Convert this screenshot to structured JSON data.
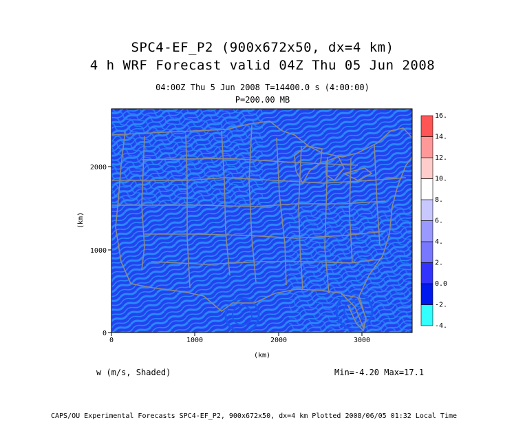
{
  "header": {
    "title_line1": "SPC4-EF_P2 (900x672x50, dx=4 km)",
    "title_line2": "4 h WRF Forecast valid 04Z Thu 05 Jun 2008",
    "subtitle_line1": "04:00Z Thu  5 Jun 2008    T=14400.0 s (4:00:00)",
    "subtitle_line2": "P=200.00 MB"
  },
  "map": {
    "field": "vertical velocity",
    "background_color": "#2244ee",
    "pattern_color": "#2a88ff",
    "boundary_color": "#8a8a8a",
    "x_axis": {
      "label": "(km)",
      "ticks": [
        "0",
        "1000",
        "2000",
        "3000"
      ],
      "range": [
        0,
        3600
      ]
    },
    "y_axis": {
      "label": "(km)",
      "ticks": [
        "0",
        "1000",
        "2000"
      ],
      "range": [
        0,
        2700
      ]
    }
  },
  "colorbar": {
    "labels": [
      "-4.",
      "-2.",
      "0.0",
      "2.",
      "4.",
      "6.",
      "8.",
      "10.",
      "12.",
      "14.",
      "16."
    ],
    "colors": [
      "#33ffff",
      "#1a88ff",
      "#0019ee",
      "#3333ff",
      "#7777ff",
      "#9999ff",
      "#c8c8ff",
      "#ffffff",
      "#ffcccc",
      "#ff9999",
      "#ff5555"
    ]
  },
  "footer": {
    "variable_label": "w (m/s, Shaded)",
    "minmax": "Min=-4.20 Max=17.1",
    "credit": "CAPS/OU Experimental Forecasts  SPC4-EF_P2, 900x672x50, dx=4 km  Plotted 2008/06/05 01:32 Local Time"
  }
}
